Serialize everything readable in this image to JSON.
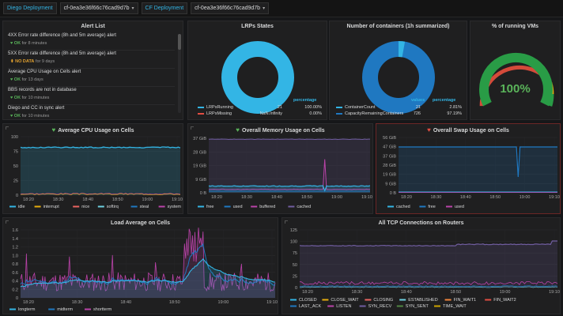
{
  "topbar": {
    "var1_label": "Diego Deployment",
    "var1_value": "cf-0ea3e36f66c76cad9d7b",
    "var2_label": "CF Deployment",
    "var2_value": "cf-0ea3e36f66c76cad9d7b"
  },
  "alert_list": {
    "title": "Alert List",
    "items": [
      {
        "name": "4XX Error rate difference (8h and 5m average) alert",
        "state": "OK",
        "duration": "for 8 minutes",
        "status": "ok"
      },
      {
        "name": "5XX Error rate difference (8h and 5m average) alert",
        "state": "NO DATA",
        "duration": "for 9 days",
        "status": "nodata"
      },
      {
        "name": "Average CPU Usage on Cells alert",
        "state": "OK",
        "duration": "for 13 days",
        "status": "ok"
      },
      {
        "name": "BBS records are not in database",
        "state": "OK",
        "duration": "for 10 minutes",
        "status": "ok"
      },
      {
        "name": "Diego and CC in sync alert",
        "state": "OK",
        "duration": "for 10 minutes",
        "status": "ok"
      }
    ]
  },
  "lrps": {
    "title": "LRPs States",
    "col_values": "values",
    "col_percentage": "percentage",
    "rows": [
      {
        "name": "LRPsRunning",
        "value": "21",
        "pct": "100.00%",
        "color": "#33b5e5"
      },
      {
        "name": "LRPsMissing",
        "value": "NaN.Infinity",
        "pct": "0.00%",
        "color": "#e24d42"
      }
    ]
  },
  "containers": {
    "title": "Number of containers (1h summarized)",
    "col_values": "values",
    "col_percentage": "percentage",
    "rows": [
      {
        "name": "ContainerCount",
        "value": "21",
        "pct": "2.81%",
        "color": "#33b5e5"
      },
      {
        "name": "CapacityRemainingContainers",
        "value": "726",
        "pct": "97.19%",
        "color": "#1f78c1"
      }
    ]
  },
  "vms": {
    "title": "% of running VMs",
    "value_text": "100%",
    "value": 100
  },
  "cpu": {
    "title": "Average CPU Usage on Cells",
    "y_ticks": [
      "100",
      "75",
      "50",
      "25",
      "0"
    ],
    "x_ticks": [
      "18:20",
      "18:30",
      "18:40",
      "18:50",
      "19:00",
      "19:10"
    ],
    "legend": [
      {
        "name": "idle",
        "color": "#33b5e5"
      },
      {
        "name": "interrupt",
        "color": "#e5ac0e"
      },
      {
        "name": "nice",
        "color": "#ea6460"
      },
      {
        "name": "softirq",
        "color": "#6ed0e0"
      },
      {
        "name": "steal",
        "color": "#1f78c1"
      },
      {
        "name": "system",
        "color": "#ba43a9"
      },
      {
        "name": "user",
        "color": "#705da0"
      },
      {
        "name": "wait",
        "color": "#f9934e"
      }
    ]
  },
  "memory": {
    "title": "Overall Memory Usage on Cells",
    "y_ticks": [
      "37 GiB",
      "28 GiB",
      "19 GiB",
      "9 GiB",
      "0 B"
    ],
    "x_ticks": [
      "18:20",
      "18:30",
      "18:40",
      "18:50",
      "19:00",
      "19:10"
    ],
    "legend": [
      {
        "name": "free",
        "color": "#33b5e5"
      },
      {
        "name": "used",
        "color": "#1f78c1"
      },
      {
        "name": "buffered",
        "color": "#ba43a9"
      },
      {
        "name": "cached",
        "color": "#705da0"
      }
    ]
  },
  "swap": {
    "title": "Overall Swap Usage on Cells",
    "y_ticks": [
      "56 GiB",
      "47 GiB",
      "37 GiB",
      "28 GiB",
      "19 GiB",
      "9 GiB",
      "0 B"
    ],
    "x_ticks": [
      "18:20",
      "18:30",
      "18:40",
      "18:50",
      "19:00",
      "19:10"
    ],
    "legend": [
      {
        "name": "cached",
        "color": "#33b5e5"
      },
      {
        "name": "free",
        "color": "#1f78c1"
      },
      {
        "name": "used",
        "color": "#ba43a9"
      }
    ]
  },
  "load": {
    "title": "Load Average on Cells",
    "y_ticks": [
      "1.6",
      "1.4",
      "1.2",
      "1.0",
      "0.8",
      "0.6",
      "0.4",
      "0.2",
      "0"
    ],
    "x_ticks": [
      "18:20",
      "18:30",
      "18:40",
      "18:50",
      "19:00",
      "19:10"
    ],
    "legend": [
      {
        "name": "longterm",
        "color": "#33b5e5"
      },
      {
        "name": "midterm",
        "color": "#1f78c1"
      },
      {
        "name": "shortterm",
        "color": "#ba43a9"
      }
    ]
  },
  "tcp": {
    "title": "All TCP Connections on Routers",
    "y_ticks": [
      "125",
      "100",
      "75",
      "50",
      "25",
      "0"
    ],
    "x_ticks": [
      "18:20",
      "18:30",
      "18:40",
      "18:50",
      "19:00",
      "19:10"
    ],
    "legend": [
      {
        "name": "CLOSED",
        "color": "#33b5e5"
      },
      {
        "name": "CLOSE_WAIT",
        "color": "#e5ac0e"
      },
      {
        "name": "CLOSING",
        "color": "#ea6460"
      },
      {
        "name": "ESTABLISHED",
        "color": "#6ed0e0"
      },
      {
        "name": "FIN_WAIT1",
        "color": "#ef843c"
      },
      {
        "name": "FIN_WAIT2",
        "color": "#e24d42"
      },
      {
        "name": "LAST_ACK",
        "color": "#1f78c1"
      },
      {
        "name": "LISTEN",
        "color": "#ba43a9"
      },
      {
        "name": "SYN_RECV",
        "color": "#705da0"
      },
      {
        "name": "SYN_SENT",
        "color": "#508642"
      },
      {
        "name": "TIME_WAIT",
        "color": "#cca300"
      }
    ]
  }
}
